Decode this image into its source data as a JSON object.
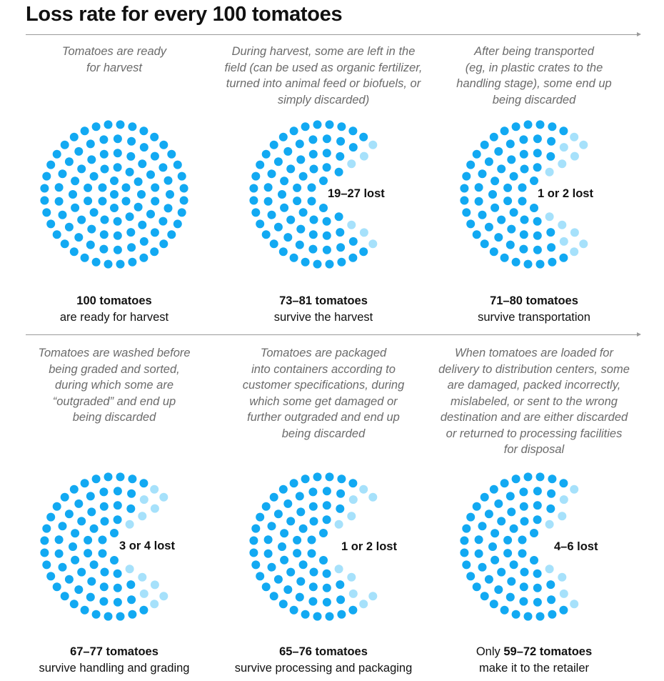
{
  "title": "Loss rate for every 100 tomatoes",
  "colors": {
    "kept": "#12a9f2",
    "lost": "#a6e1fb",
    "divider": "#9a9a9a",
    "description": "#6b6b6b"
  },
  "stages": [
    {
      "description": "Tomatoes are ready\nfor harvest",
      "lost_label": "",
      "result_prefix": "",
      "result_bold": "100 tomatoes",
      "result_suffix": "are ready for harvest"
    },
    {
      "description": "During harvest, some are left in the\nfield (can be used as organic fertilizer,\nturned into animal feed or biofuels, or\nsimply discarded)",
      "lost_label": "19–27 lost",
      "result_prefix": "",
      "result_bold": "73–81 tomatoes",
      "result_suffix": "survive the harvest"
    },
    {
      "description": "After being transported\n(eg, in plastic crates to the\nhandling stage), some end up\nbeing discarded",
      "lost_label": "1 or 2 lost",
      "result_prefix": "",
      "result_bold": "71–80 tomatoes",
      "result_suffix": "survive transportation"
    },
    {
      "description": "Tomatoes are washed before\nbeing graded and sorted,\nduring which some are\n“outgraded” and end up\nbeing discarded",
      "lost_label": "3 or 4 lost",
      "result_prefix": "",
      "result_bold": "67–77 tomatoes",
      "result_suffix": "survive handling and grading"
    },
    {
      "description": "Tomatoes are packaged\ninto containers according to\ncustomer specifications, during\nwhich some get damaged or\nfurther outgraded and end up\nbeing discarded",
      "lost_label": "1 or 2 lost",
      "result_prefix": "",
      "result_bold": "65–76 tomatoes",
      "result_suffix": "survive processing and packaging"
    },
    {
      "description": "When tomatoes are loaded for\ndelivery to distribution centers, some\nare damaged, packed incorrectly,\nmislabeled, or sent to the wrong\ndestination and are either discarded\nor returned to processing facilities\nfor disposal",
      "lost_label": "4–6 lost",
      "result_prefix": "Only ",
      "result_bold": "59–72 tomatoes",
      "result_suffix": "make it to the retailer"
    }
  ]
}
